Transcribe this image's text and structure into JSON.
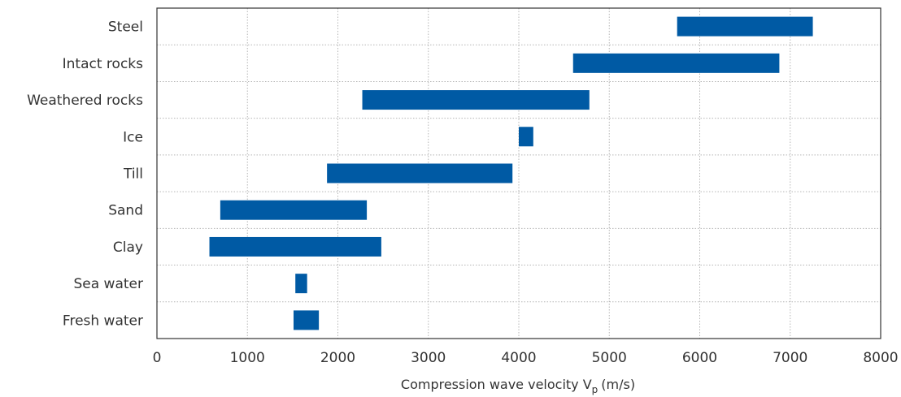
{
  "chart_data": {
    "type": "bar",
    "orientation": "horizontal-range",
    "categories": [
      "Steel",
      "Intact rocks",
      "Weathered rocks",
      "Ice",
      "Till",
      "Sand",
      "Clay",
      "Sea water",
      "Fresh water"
    ],
    "ranges": [
      [
        5750,
        7250
      ],
      [
        4600,
        6880
      ],
      [
        2270,
        4780
      ],
      [
        4000,
        4160
      ],
      [
        1880,
        3930
      ],
      [
        700,
        2320
      ],
      [
        580,
        2480
      ],
      [
        1530,
        1660
      ],
      [
        1510,
        1790
      ]
    ],
    "xlim": [
      0,
      8000
    ],
    "xticks": [
      0,
      1000,
      2000,
      3000,
      4000,
      5000,
      6000,
      7000,
      8000
    ],
    "xlabel": "Compression wave velocity V",
    "xlabel_subscript": "p",
    "xlabel_unit": "(m/s)",
    "grid": true,
    "bar_color": "#005aa4"
  }
}
